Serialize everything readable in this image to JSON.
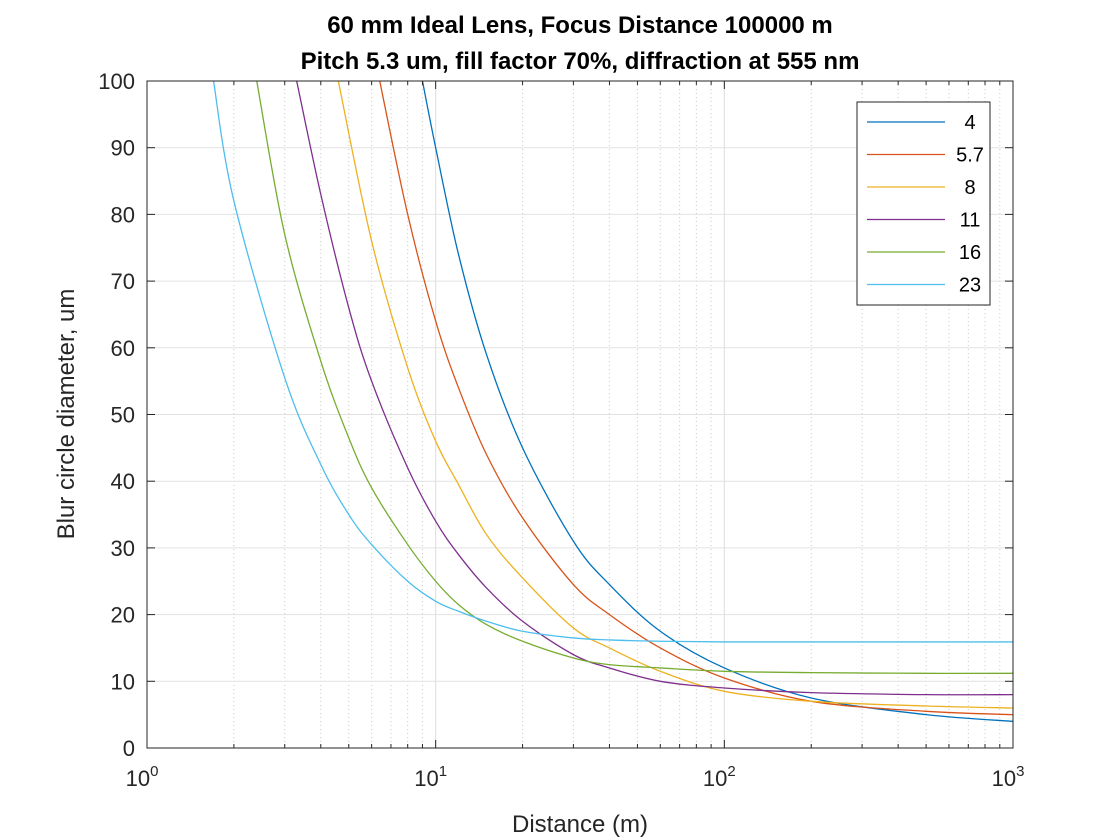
{
  "chart_data": {
    "type": "line",
    "title": "60 mm Ideal Lens, Focus Distance 100000 m",
    "subtitle": "Pitch 5.3 um, fill factor 70%, diffraction at 555 nm",
    "xlabel": "Distance (m)",
    "ylabel": "Blur circle diameter, um",
    "xscale": "log",
    "xlim": [
      1,
      1000
    ],
    "ylim": [
      0,
      100
    ],
    "x_ticks": [
      {
        "base": "10",
        "exp": "0"
      },
      {
        "base": "10",
        "exp": "1"
      },
      {
        "base": "10",
        "exp": "2"
      },
      {
        "base": "10",
        "exp": "3"
      }
    ],
    "y_ticks": [
      "0",
      "10",
      "20",
      "30",
      "40",
      "50",
      "60",
      "70",
      "80",
      "90",
      "100"
    ],
    "grid": true,
    "legend_position": "top-right",
    "series": [
      {
        "name": "4",
        "color": "#0072BD",
        "x": [
          9,
          10,
          12,
          15,
          20,
          30,
          40,
          60,
          100,
          200,
          500,
          1000
        ],
        "y": [
          100,
          90,
          74,
          59,
          45,
          31,
          24.5,
          17.5,
          12,
          7.5,
          5,
          4
        ]
      },
      {
        "name": "5.7",
        "color": "#D95319",
        "x": [
          6.4,
          8,
          10,
          12,
          15,
          20,
          30,
          40,
          60,
          100,
          200,
          500,
          1000
        ],
        "y": [
          100,
          80,
          64,
          54,
          44,
          34.5,
          24.5,
          20,
          15,
          10.5,
          7,
          5.5,
          5
        ]
      },
      {
        "name": "8",
        "color": "#EDB120",
        "x": [
          4.6,
          6,
          8,
          10,
          12,
          15,
          20,
          30,
          40,
          60,
          100,
          200,
          500,
          1000
        ],
        "y": [
          100,
          76,
          57,
          46,
          39.5,
          32,
          25.5,
          18,
          15,
          11.5,
          8.5,
          7,
          6.3,
          6
        ]
      },
      {
        "name": "11",
        "color": "#7E2F8E",
        "x": [
          3.3,
          4,
          5,
          6,
          8,
          10,
          12,
          15,
          20,
          30,
          40,
          60,
          100,
          200,
          500,
          1000
        ],
        "y": [
          100,
          83,
          66,
          55,
          42,
          34,
          29,
          24,
          19,
          14,
          12,
          10,
          9,
          8.3,
          8,
          8
        ]
      },
      {
        "name": "16",
        "color": "#77AC30",
        "x": [
          2.4,
          3,
          4,
          5,
          6,
          8,
          10,
          12,
          15,
          20,
          30,
          40,
          60,
          100,
          200,
          500,
          1000
        ],
        "y": [
          100,
          77,
          58,
          46.5,
          39,
          30.5,
          25,
          21.5,
          18.5,
          16,
          13.5,
          12.5,
          12,
          11.5,
          11.3,
          11.2,
          11.2
        ]
      },
      {
        "name": "23",
        "color": "#4DBEEE",
        "x": [
          1.7,
          2,
          3,
          4,
          5,
          6,
          8,
          10,
          12,
          15,
          20,
          30,
          40,
          60,
          100,
          200,
          500,
          1000
        ],
        "y": [
          100,
          82,
          55.5,
          42.5,
          35,
          30.5,
          25,
          22,
          20.5,
          19,
          17.5,
          16.5,
          16.2,
          16,
          15.9,
          15.9,
          15.9,
          15.9
        ]
      }
    ]
  }
}
